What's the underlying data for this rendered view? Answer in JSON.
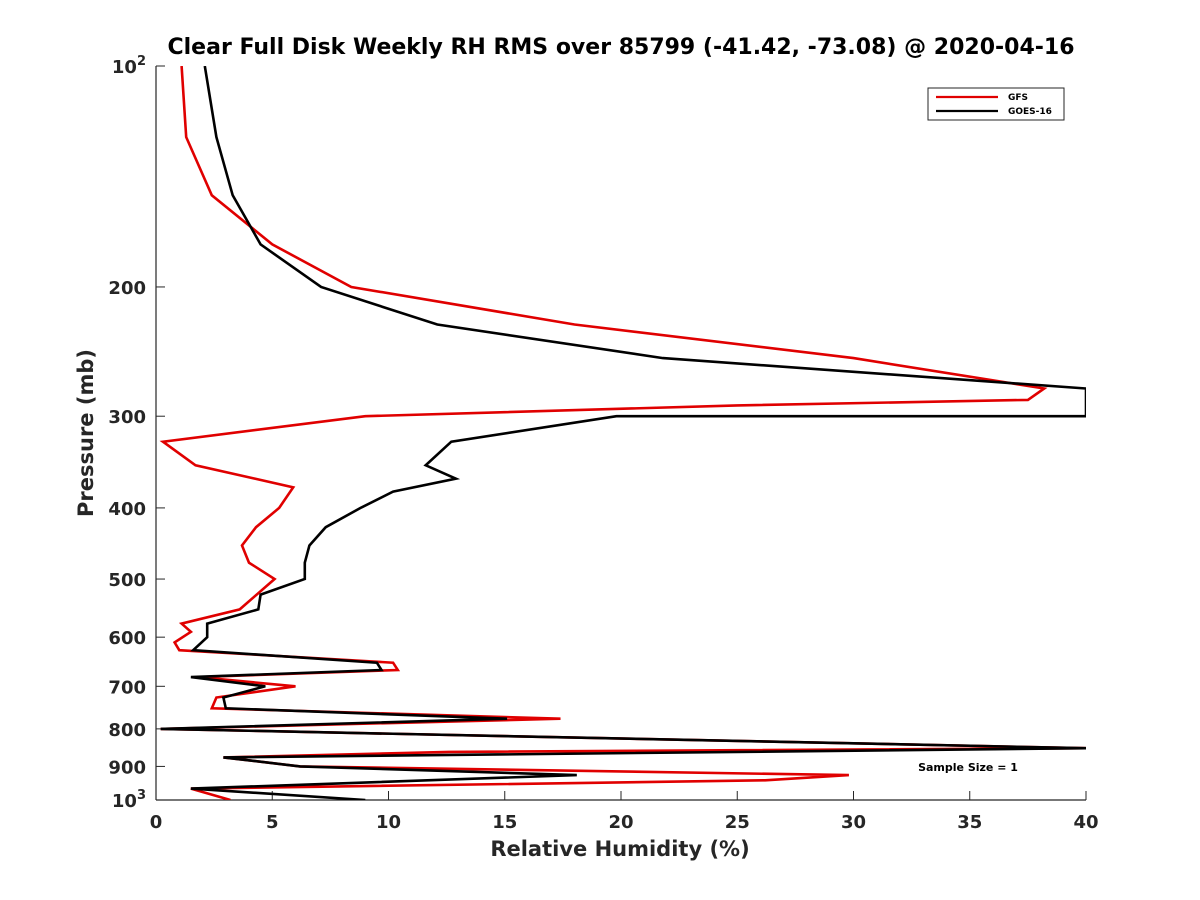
{
  "chart_data": {
    "type": "line",
    "title": "Clear Full Disk Weekly RH RMS over 85799 (-41.42, -73.08) @ 2020-04-16",
    "xlabel": "Relative Humidity (%)",
    "ylabel": "Pressure (mb)",
    "xlim": [
      0,
      40
    ],
    "ylim": [
      100,
      1000
    ],
    "yscale": "log",
    "yreversed": true,
    "grid": false,
    "legend_position": "top-right",
    "x_ticks": [
      "0",
      "5",
      "10",
      "15",
      "20",
      "25",
      "30",
      "35",
      "40"
    ],
    "y_ticks": [
      {
        "value": 100,
        "base": "10",
        "exp": "2"
      },
      {
        "value": 200,
        "label": "200"
      },
      {
        "value": 300,
        "label": "300"
      },
      {
        "value": 400,
        "label": "400"
      },
      {
        "value": 500,
        "label": "500"
      },
      {
        "value": 600,
        "label": "600"
      },
      {
        "value": 700,
        "label": "700"
      },
      {
        "value": 800,
        "label": "800"
      },
      {
        "value": 900,
        "label": "900"
      },
      {
        "value": 1000,
        "base": "10",
        "exp": "3"
      }
    ],
    "annotation": "Sample Size = 1",
    "series": [
      {
        "name": "GFS",
        "color": "#e00000",
        "points": [
          [
            1.1,
            100
          ],
          [
            1.3,
            125
          ],
          [
            2.4,
            150
          ],
          [
            5.0,
            175
          ],
          [
            8.4,
            200
          ],
          [
            18.0,
            225
          ],
          [
            30.0,
            250
          ],
          [
            38.2,
            275
          ],
          [
            37.5,
            285
          ],
          [
            25.0,
            290
          ],
          [
            9.0,
            300
          ],
          [
            0.3,
            325
          ],
          [
            1.7,
            350
          ],
          [
            5.9,
            375
          ],
          [
            5.3,
            400
          ],
          [
            4.3,
            425
          ],
          [
            3.7,
            450
          ],
          [
            4.0,
            475
          ],
          [
            5.1,
            500
          ],
          [
            3.6,
            550
          ],
          [
            1.1,
            575
          ],
          [
            1.5,
            590
          ],
          [
            0.8,
            610
          ],
          [
            1.0,
            625
          ],
          [
            10.2,
            650
          ],
          [
            10.4,
            665
          ],
          [
            1.8,
            680
          ],
          [
            6.0,
            700
          ],
          [
            2.6,
            725
          ],
          [
            2.4,
            750
          ],
          [
            17.4,
            775
          ],
          [
            0.2,
            800
          ],
          [
            40.0,
            850
          ],
          [
            12.6,
            860
          ],
          [
            2.9,
            875
          ],
          [
            6.2,
            900
          ],
          [
            29.8,
            925
          ],
          [
            26.2,
            940
          ],
          [
            1.5,
            965
          ],
          [
            3.2,
            1000
          ]
        ]
      },
      {
        "name": "GOES-16",
        "color": "#000000",
        "points": [
          [
            2.1,
            100
          ],
          [
            2.6,
            125
          ],
          [
            3.3,
            150
          ],
          [
            4.5,
            175
          ],
          [
            7.1,
            200
          ],
          [
            12.1,
            225
          ],
          [
            21.8,
            250
          ],
          [
            40.0,
            275
          ],
          [
            40.0,
            300
          ],
          [
            19.8,
            300
          ],
          [
            12.7,
            325
          ],
          [
            11.6,
            350
          ],
          [
            12.9,
            365
          ],
          [
            10.2,
            380
          ],
          [
            8.8,
            400
          ],
          [
            7.3,
            425
          ],
          [
            6.6,
            450
          ],
          [
            6.4,
            475
          ],
          [
            6.4,
            500
          ],
          [
            4.5,
            525
          ],
          [
            4.4,
            550
          ],
          [
            2.2,
            575
          ],
          [
            2.2,
            600
          ],
          [
            1.6,
            625
          ],
          [
            9.5,
            650
          ],
          [
            9.7,
            665
          ],
          [
            1.5,
            680
          ],
          [
            4.7,
            700
          ],
          [
            2.9,
            725
          ],
          [
            3.0,
            750
          ],
          [
            15.1,
            775
          ],
          [
            0.2,
            800
          ],
          [
            40.0,
            850
          ],
          [
            2.9,
            875
          ],
          [
            6.2,
            900
          ],
          [
            18.1,
            925
          ],
          [
            1.5,
            965
          ],
          [
            9.0,
            1000
          ]
        ]
      }
    ]
  }
}
